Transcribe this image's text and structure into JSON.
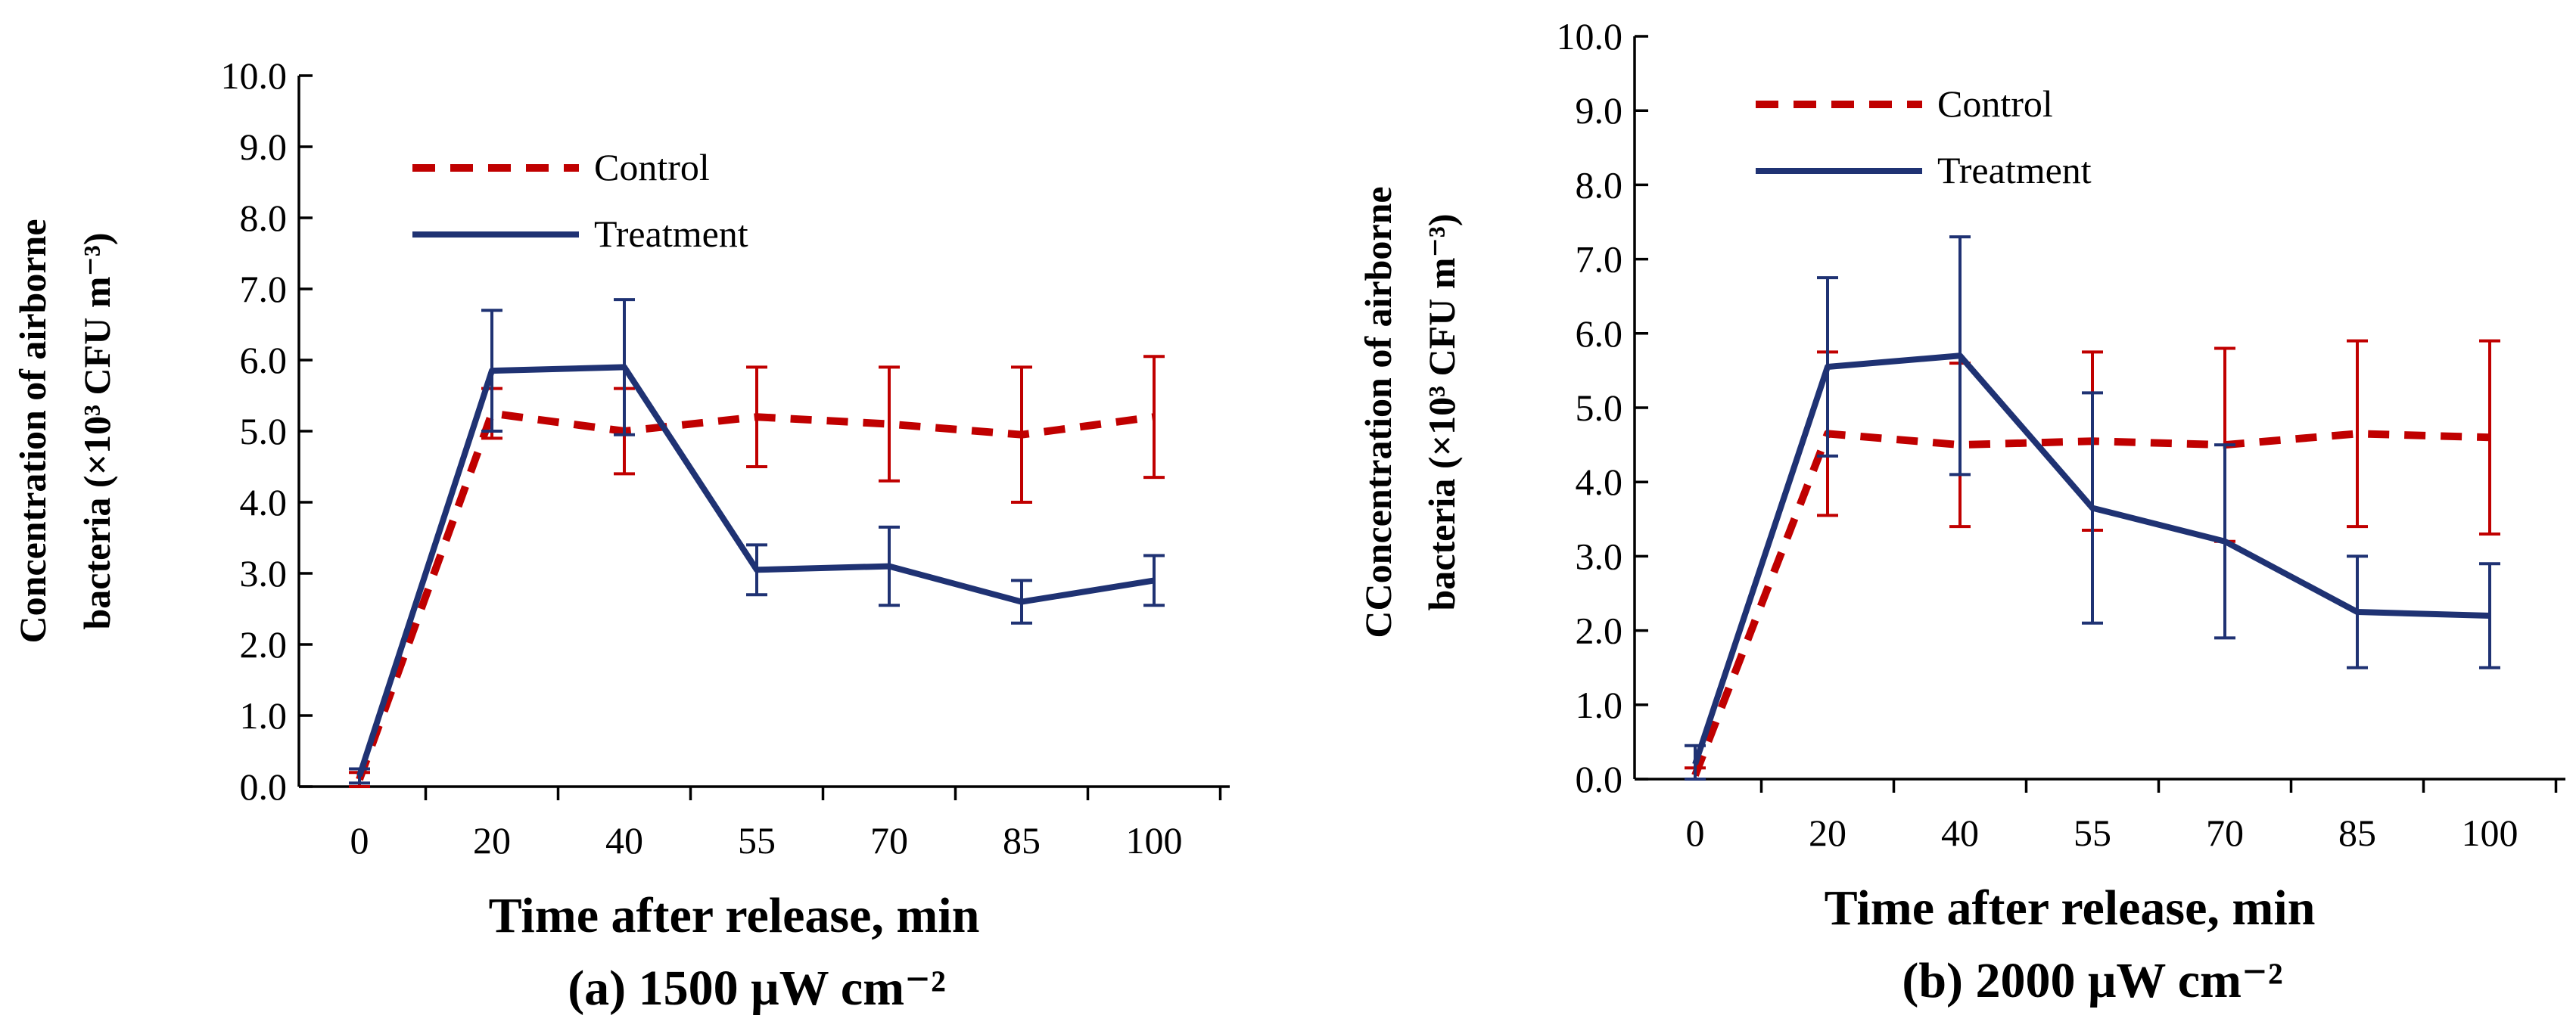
{
  "chart_data": [
    {
      "type": "line",
      "caption": "(a) 1500 μW cm⁻²",
      "xlabel": "Time after release, min",
      "ylabel_line1": "Concentration of airborne",
      "ylabel_line2": "bacteria  (×10³ CFU m⁻³)",
      "categories": [
        "0",
        "20",
        "40",
        "55",
        "70",
        "85",
        "100"
      ],
      "ylim": [
        0,
        10
      ],
      "yticks": [
        "0.0",
        "1.0",
        "2.0",
        "3.0",
        "4.0",
        "5.0",
        "6.0",
        "7.0",
        "8.0",
        "9.0",
        "10.0"
      ],
      "legend_position": "top-left",
      "grid": false,
      "series": [
        {
          "name": "Control",
          "style": "dashed",
          "color": "#C00000",
          "values": [
            0.1,
            5.25,
            5.0,
            5.2,
            5.1,
            4.95,
            5.2
          ],
          "error": [
            0.1,
            0.35,
            0.6,
            0.7,
            0.8,
            0.95,
            0.85
          ]
        },
        {
          "name": "Treatment",
          "style": "solid",
          "color": "#1F3273",
          "values": [
            0.15,
            5.85,
            5.9,
            3.05,
            3.1,
            2.6,
            2.9
          ],
          "error": [
            0.1,
            0.85,
            0.95,
            0.35,
            0.55,
            0.3,
            0.35
          ]
        }
      ]
    },
    {
      "type": "line",
      "caption": "(b) 2000 μW cm⁻²",
      "xlabel": "Time after release, min",
      "ylabel_line1": "CConcentration of airborne",
      "ylabel_line2": "bacteria  (×10³ CFU m⁻³)",
      "categories": [
        "0",
        "20",
        "40",
        "55",
        "70",
        "85",
        "100"
      ],
      "ylim": [
        0,
        10
      ],
      "yticks": [
        "0.0",
        "1.0",
        "2.0",
        "3.0",
        "4.0",
        "5.0",
        "6.0",
        "7.0",
        "8.0",
        "9.0",
        "10.0"
      ],
      "legend_position": "top-left",
      "grid": false,
      "series": [
        {
          "name": "Control",
          "style": "dashed",
          "color": "#C00000",
          "values": [
            0.05,
            4.65,
            4.5,
            4.55,
            4.5,
            4.65,
            4.6
          ],
          "error": [
            0.1,
            1.1,
            1.1,
            1.2,
            1.3,
            1.25,
            1.3
          ]
        },
        {
          "name": "Treatment",
          "style": "solid",
          "color": "#1F3273",
          "values": [
            0.2,
            5.55,
            5.7,
            3.65,
            3.2,
            2.25,
            2.2
          ],
          "error": [
            0.25,
            1.2,
            1.6,
            1.55,
            1.3,
            0.75,
            0.7
          ]
        }
      ]
    }
  ]
}
